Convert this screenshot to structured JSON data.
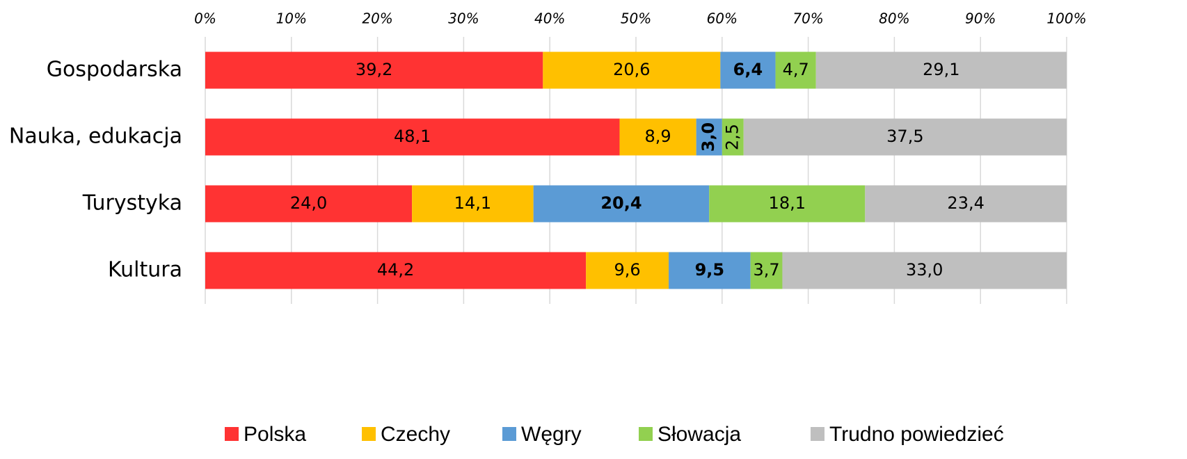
{
  "chart_data": {
    "type": "stacked_bar_horizontal",
    "categories": [
      "Gospodarska",
      "Nauka, edukacja",
      "Turystyka",
      "Kultura"
    ],
    "series": [
      {
        "name": "Polska",
        "color": "#ff3333",
        "values": [
          39.2,
          48.1,
          24.0,
          44.2
        ],
        "value_labels": [
          "39,2",
          "48,1",
          "24,0",
          "44,2"
        ]
      },
      {
        "name": "Czechy",
        "color": "#ffc000",
        "values": [
          20.6,
          8.9,
          14.1,
          9.6
        ],
        "value_labels": [
          "20,6",
          "8,9",
          "14,1",
          "9,6"
        ]
      },
      {
        "name": "Węgry",
        "color": "#5b9bd5",
        "bold": true,
        "values": [
          6.4,
          3.0,
          20.4,
          9.5
        ],
        "value_labels": [
          "6,4",
          "3,0",
          "20,4",
          "9,5"
        ]
      },
      {
        "name": "Słowacja",
        "color": "#92d050",
        "values": [
          4.7,
          2.5,
          18.1,
          3.7
        ],
        "value_labels": [
          "4,7",
          "2,5",
          "18,1",
          "3,7"
        ]
      },
      {
        "name": "Trudno powiedzieć",
        "color": "#bfbfbf",
        "values": [
          29.1,
          37.5,
          23.4,
          33.0
        ],
        "value_labels": [
          "29,1",
          "37,5",
          "23,4",
          "33,0"
        ]
      }
    ],
    "xlim": [
      0,
      100
    ],
    "xticks": [
      {
        "value": 0,
        "label": "0%"
      },
      {
        "value": 10,
        "label": "10%"
      },
      {
        "value": 20,
        "label": "20%"
      },
      {
        "value": 30,
        "label": "30%"
      },
      {
        "value": 40,
        "label": "40%"
      },
      {
        "value": 50,
        "label": "50%"
      },
      {
        "value": 60,
        "label": "60%"
      },
      {
        "value": 70,
        "label": "70%"
      },
      {
        "value": 80,
        "label": "80%"
      },
      {
        "value": 90,
        "label": "90%"
      },
      {
        "value": 100,
        "label": "100%"
      }
    ],
    "grid": true,
    "legend": "bottom"
  }
}
